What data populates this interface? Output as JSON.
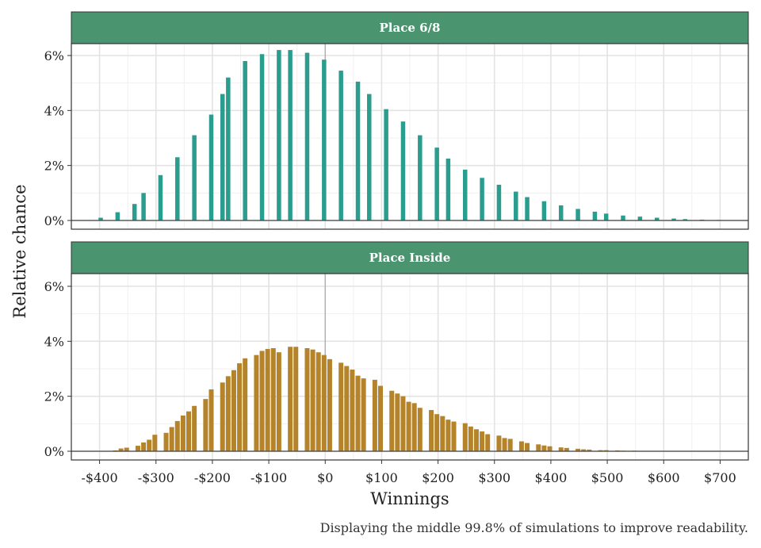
{
  "chart_data": {
    "type": "bar",
    "ylabel": "Relative chance",
    "xlabel": "Winnings",
    "caption": "Displaying the middle 99.8% of simulations to improve readability.",
    "xlim": [
      -450,
      750
    ],
    "ylim": [
      0,
      6.6
    ],
    "x_ticks": [
      {
        "value": -400,
        "label": "-$400"
      },
      {
        "value": -300,
        "label": "-$300"
      },
      {
        "value": -200,
        "label": "-$200"
      },
      {
        "value": -100,
        "label": "-$100"
      },
      {
        "value": 0,
        "label": "$0"
      },
      {
        "value": 100,
        "label": "$100"
      },
      {
        "value": 200,
        "label": "$200"
      },
      {
        "value": 300,
        "label": "$300"
      },
      {
        "value": 400,
        "label": "$400"
      },
      {
        "value": 500,
        "label": "$500"
      },
      {
        "value": 600,
        "label": "$600"
      },
      {
        "value": 700,
        "label": "$700"
      }
    ],
    "y_ticks": [
      {
        "value": 0,
        "label": "0%"
      },
      {
        "value": 2,
        "label": "2%"
      },
      {
        "value": 4,
        "label": "4%"
      },
      {
        "value": 6,
        "label": "6%"
      }
    ],
    "grid": true,
    "panels": [
      {
        "name": "Place 6/8",
        "color": "#2a9d8f",
        "points": [
          [
            -398,
            0.1
          ],
          [
            -368,
            0.3
          ],
          [
            -338,
            0.6
          ],
          [
            -322,
            1.0
          ],
          [
            -292,
            1.65
          ],
          [
            -262,
            2.3
          ],
          [
            -232,
            3.1
          ],
          [
            -202,
            3.85
          ],
          [
            -182,
            4.6
          ],
          [
            -172,
            5.2
          ],
          [
            -142,
            5.8
          ],
          [
            -112,
            6.05
          ],
          [
            -82,
            6.2
          ],
          [
            -62,
            6.2
          ],
          [
            -32,
            6.1
          ],
          [
            -2,
            5.85
          ],
          [
            28,
            5.45
          ],
          [
            58,
            5.05
          ],
          [
            78,
            4.6
          ],
          [
            108,
            4.05
          ],
          [
            138,
            3.6
          ],
          [
            168,
            3.1
          ],
          [
            198,
            2.65
          ],
          [
            218,
            2.25
          ],
          [
            248,
            1.85
          ],
          [
            278,
            1.55
          ],
          [
            308,
            1.3
          ],
          [
            338,
            1.05
          ],
          [
            358,
            0.85
          ],
          [
            388,
            0.7
          ],
          [
            418,
            0.55
          ],
          [
            448,
            0.42
          ],
          [
            478,
            0.32
          ],
          [
            498,
            0.25
          ],
          [
            528,
            0.18
          ],
          [
            558,
            0.14
          ],
          [
            588,
            0.1
          ],
          [
            618,
            0.07
          ],
          [
            638,
            0.05
          ],
          [
            668,
            0.03
          ],
          [
            698,
            0.02
          ]
        ]
      },
      {
        "name": "Place Inside",
        "color": "#b5842a",
        "points": [
          [
            -372,
            0.03
          ],
          [
            -362,
            0.1
          ],
          [
            -352,
            0.13
          ],
          [
            -332,
            0.2
          ],
          [
            -322,
            0.32
          ],
          [
            -312,
            0.42
          ],
          [
            -302,
            0.6
          ],
          [
            -282,
            0.67
          ],
          [
            -272,
            0.88
          ],
          [
            -262,
            1.1
          ],
          [
            -252,
            1.3
          ],
          [
            -242,
            1.45
          ],
          [
            -232,
            1.65
          ],
          [
            -212,
            1.9
          ],
          [
            -202,
            2.25
          ],
          [
            -182,
            2.5
          ],
          [
            -172,
            2.73
          ],
          [
            -162,
            2.95
          ],
          [
            -152,
            3.2
          ],
          [
            -142,
            3.38
          ],
          [
            -122,
            3.5
          ],
          [
            -112,
            3.65
          ],
          [
            -102,
            3.72
          ],
          [
            -92,
            3.75
          ],
          [
            -82,
            3.6
          ],
          [
            -62,
            3.8
          ],
          [
            -52,
            3.8
          ],
          [
            -32,
            3.75
          ],
          [
            -22,
            3.7
          ],
          [
            -12,
            3.6
          ],
          [
            -2,
            3.5
          ],
          [
            8,
            3.35
          ],
          [
            28,
            3.22
          ],
          [
            38,
            3.1
          ],
          [
            48,
            2.97
          ],
          [
            58,
            2.75
          ],
          [
            68,
            2.65
          ],
          [
            88,
            2.6
          ],
          [
            98,
            2.38
          ],
          [
            118,
            2.2
          ],
          [
            128,
            2.1
          ],
          [
            138,
            2.0
          ],
          [
            148,
            1.8
          ],
          [
            158,
            1.75
          ],
          [
            168,
            1.58
          ],
          [
            188,
            1.5
          ],
          [
            198,
            1.35
          ],
          [
            208,
            1.28
          ],
          [
            218,
            1.15
          ],
          [
            228,
            1.08
          ],
          [
            248,
            1.02
          ],
          [
            258,
            0.9
          ],
          [
            268,
            0.8
          ],
          [
            278,
            0.72
          ],
          [
            288,
            0.62
          ],
          [
            308,
            0.57
          ],
          [
            318,
            0.48
          ],
          [
            328,
            0.45
          ],
          [
            348,
            0.36
          ],
          [
            358,
            0.3
          ],
          [
            378,
            0.25
          ],
          [
            388,
            0.21
          ],
          [
            398,
            0.18
          ],
          [
            418,
            0.14
          ],
          [
            428,
            0.12
          ],
          [
            448,
            0.09
          ],
          [
            458,
            0.07
          ],
          [
            468,
            0.06
          ],
          [
            488,
            0.04
          ],
          [
            498,
            0.04
          ],
          [
            518,
            0.03
          ],
          [
            528,
            0.02
          ],
          [
            548,
            0.02
          ],
          [
            558,
            0.01
          ],
          [
            578,
            0.01
          ],
          [
            588,
            0.01
          ],
          [
            608,
            0.01
          ],
          [
            618,
            0.01
          ],
          [
            638,
            0.01
          ],
          [
            648,
            0.01
          ],
          [
            668,
            0.01
          ],
          [
            678,
            0.01
          ],
          [
            698,
            0.01
          ],
          [
            708,
            0.01
          ]
        ]
      }
    ]
  }
}
